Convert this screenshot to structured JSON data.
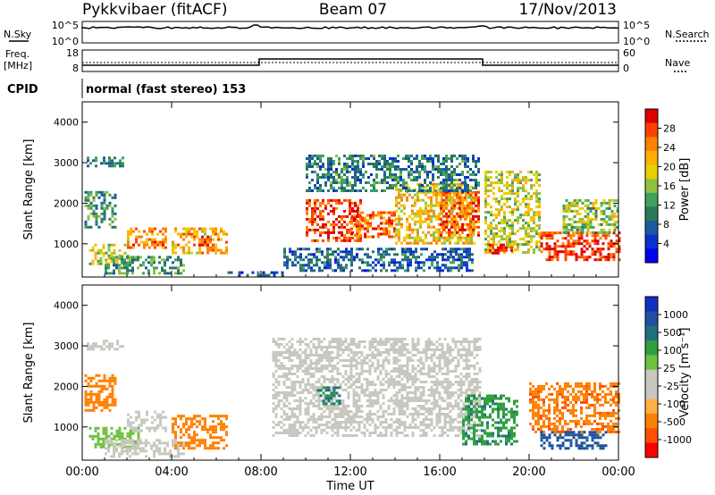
{
  "header": {
    "station": "Pykkvibaer (fitACF)",
    "beam": "Beam 07",
    "date": "17/Nov/2013"
  },
  "top_panels": {
    "nsky_label": "N.Sky",
    "nsearch_label": "N.Search",
    "nsky_ticks": [
      "10^5",
      "10^0"
    ],
    "nsearch_ticks": [
      "10^5",
      "10^0"
    ],
    "freq_label": "Freq.",
    "freq_unit": "[MHz]",
    "freq_ticks": [
      "18",
      "8"
    ],
    "nave_label": "Nave",
    "nave_ticks": [
      "60",
      "0"
    ],
    "cpid_label": "CPID",
    "cpid_text": "normal (fast stereo) 153"
  },
  "power_colorbar": {
    "label": "Power [dB]",
    "ticks": [
      "28",
      "24",
      "20",
      "16",
      "12",
      "8",
      "4"
    ],
    "colors": [
      "#e00000",
      "#ff4000",
      "#ff8000",
      "#ffb000",
      "#e8d000",
      "#90c040",
      "#40a060",
      "#2a7a5a",
      "#1a5aa0",
      "#0a30d0",
      "#0000f0"
    ]
  },
  "velocity_colorbar": {
    "label": "Velocity [m s⁻¹]",
    "ticks": [
      "1000",
      "500",
      "100",
      "25",
      "-25",
      "-100",
      "-500",
      "-1000"
    ],
    "colors": [
      "#1030c0",
      "#2050a0",
      "#207080",
      "#30a040",
      "#70c040",
      "#c8c8c0",
      "#c8c8c0",
      "#ffb040",
      "#ff8000",
      "#ff5000",
      "#ff0000"
    ]
  },
  "chart_data": [
    {
      "type": "heatmap",
      "title": "",
      "xlabel": "",
      "ylabel": "Slant Range [km]",
      "quantity": "Power [dB]",
      "x_ticks": [
        "00:00",
        "04:00",
        "08:00",
        "12:00",
        "16:00",
        "20:00",
        "00:00"
      ],
      "y_ticks": [
        "1000",
        "2000",
        "3000",
        "4000"
      ],
      "xlim_hours": [
        0,
        24
      ],
      "ylim_km": [
        180,
        4500
      ],
      "regions": [
        {
          "t0": 0.2,
          "t1": 1.8,
          "r0": 2900,
          "r1": 3150,
          "value": 8
        },
        {
          "t0": 0.1,
          "t1": 1.5,
          "r0": 1400,
          "r1": 2300,
          "value": 10
        },
        {
          "t0": 0.3,
          "t1": 2.0,
          "r0": 500,
          "r1": 1000,
          "value": 16
        },
        {
          "t0": 2.0,
          "t1": 3.8,
          "r0": 900,
          "r1": 1400,
          "value": 22
        },
        {
          "t0": 4.0,
          "t1": 6.5,
          "r0": 800,
          "r1": 1400,
          "value": 20
        },
        {
          "t0": 5.2,
          "t1": 5.8,
          "r0": 900,
          "r1": 1200,
          "value": 26
        },
        {
          "t0": 1.0,
          "t1": 4.5,
          "r0": 300,
          "r1": 700,
          "value": 10
        },
        {
          "t0": 6.5,
          "t1": 9.0,
          "r0": 200,
          "r1": 320,
          "value": 6
        },
        {
          "t0": 10.0,
          "t1": 12.5,
          "r0": 1100,
          "r1": 2100,
          "value": 26
        },
        {
          "t0": 12.0,
          "t1": 14.0,
          "r0": 1200,
          "r1": 1800,
          "value": 24
        },
        {
          "t0": 14.0,
          "t1": 17.5,
          "r0": 1000,
          "r1": 2500,
          "value": 18
        },
        {
          "t0": 16.0,
          "t1": 17.8,
          "r0": 1200,
          "r1": 2300,
          "value": 24
        },
        {
          "t0": 10.0,
          "t1": 17.8,
          "r0": 2300,
          "r1": 3200,
          "value": 8
        },
        {
          "t0": 18.0,
          "t1": 20.5,
          "r0": 800,
          "r1": 2800,
          "value": 16
        },
        {
          "t0": 18.2,
          "t1": 19.2,
          "r0": 800,
          "r1": 1000,
          "value": 28
        },
        {
          "t0": 20.5,
          "t1": 24,
          "r0": 600,
          "r1": 1300,
          "value": 26
        },
        {
          "t0": 21.5,
          "t1": 24,
          "r0": 1300,
          "r1": 2100,
          "value": 14
        },
        {
          "t0": 9.0,
          "t1": 17.5,
          "r0": 350,
          "r1": 900,
          "value": 6
        }
      ]
    },
    {
      "type": "heatmap",
      "title": "",
      "xlabel": "Time UT",
      "ylabel": "Slant Range [km]",
      "quantity": "Velocity [m s⁻¹]",
      "x_ticks": [
        "00:00",
        "04:00",
        "08:00",
        "12:00",
        "16:00",
        "20:00",
        "00:00"
      ],
      "y_ticks": [
        "1000",
        "2000",
        "3000",
        "4000"
      ],
      "xlim_hours": [
        0,
        24
      ],
      "ylim_km": [
        180,
        4500
      ],
      "regions": [
        {
          "t0": 0.2,
          "t1": 1.8,
          "r0": 2900,
          "r1": 3150,
          "value": 0
        },
        {
          "t0": 0.1,
          "t1": 1.5,
          "r0": 1400,
          "r1": 2300,
          "value": -300
        },
        {
          "t0": 0.3,
          "t1": 2.5,
          "r0": 500,
          "r1": 1000,
          "value": 60
        },
        {
          "t0": 2.0,
          "t1": 3.8,
          "r0": 900,
          "r1": 1400,
          "value": 0
        },
        {
          "t0": 4.0,
          "t1": 6.5,
          "r0": 500,
          "r1": 1300,
          "value": -300
        },
        {
          "t0": 1.0,
          "t1": 4.5,
          "r0": 300,
          "r1": 700,
          "value": 0
        },
        {
          "t0": 8.5,
          "t1": 17.8,
          "r0": 800,
          "r1": 3200,
          "value": 0
        },
        {
          "t0": 10.5,
          "t1": 11.5,
          "r0": 1600,
          "r1": 2000,
          "value": 300
        },
        {
          "t0": 17.0,
          "t1": 19.5,
          "r0": 600,
          "r1": 1800,
          "value": 200
        },
        {
          "t0": 20.0,
          "t1": 24,
          "r0": 900,
          "r1": 2100,
          "value": -400
        },
        {
          "t0": 20.5,
          "t1": 23.5,
          "r0": 500,
          "r1": 900,
          "value": 700
        }
      ]
    }
  ]
}
